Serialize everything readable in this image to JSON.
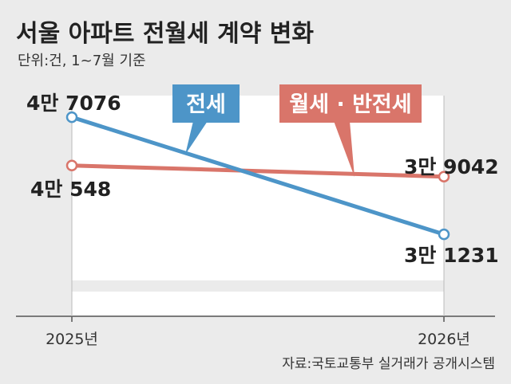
{
  "chart_data": {
    "type": "line",
    "title": "서울 아파트 전월세 계약 변화",
    "subtitle": "단위:건, 1~7월 기준",
    "categories": [
      "2025년",
      "2026년"
    ],
    "series": [
      {
        "name": "전세",
        "values": [
          47076,
          31231
        ],
        "value_labels": [
          "4만 7076",
          "3만 1231"
        ],
        "color": "#4d95c8"
      },
      {
        "name": "월세 · 반전세",
        "values": [
          40548,
          39042
        ],
        "value_labels": [
          "4만 548",
          "3만 9042"
        ],
        "color": "#d9756a"
      }
    ],
    "ylim": [
      25000,
      50000
    ],
    "source": "자료:국토교통부 실거래가 공개시스템"
  },
  "colors": {
    "background": "#ebebeb",
    "plot_area": "#ffffff",
    "axis": "#555555",
    "text": "#222222"
  }
}
